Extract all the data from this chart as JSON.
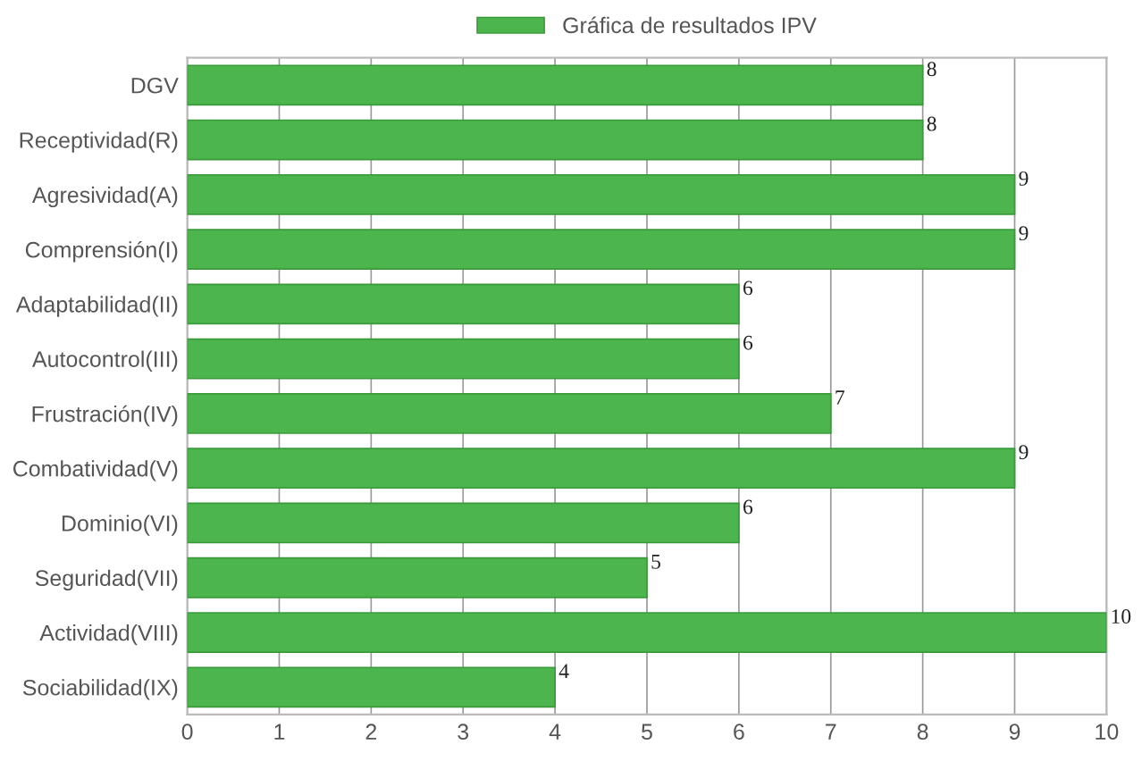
{
  "chart_data": {
    "type": "bar",
    "orientation": "horizontal",
    "categories": [
      "DGV",
      "Receptividad(R)",
      "Agresividad(A)",
      "Comprensión(I)",
      "Adaptabilidad(II)",
      "Autocontrol(III)",
      "Frustración(IV)",
      "Combatividad(V)",
      "Dominio(VI)",
      "Seguridad(VII)",
      "Actividad(VIII)",
      "Sociabilidad(IX)"
    ],
    "series": [
      {
        "name": "Gráfica de resultados IPV",
        "color": "#4db54d",
        "values": [
          8,
          8,
          9,
          9,
          6,
          6,
          7,
          9,
          6,
          5,
          10,
          4
        ]
      }
    ],
    "xlim": [
      0,
      10
    ],
    "xticks": [
      0,
      1,
      2,
      3,
      4,
      5,
      6,
      7,
      8,
      9,
      10
    ],
    "grid": "x",
    "legend": "top",
    "data_labels": true
  }
}
